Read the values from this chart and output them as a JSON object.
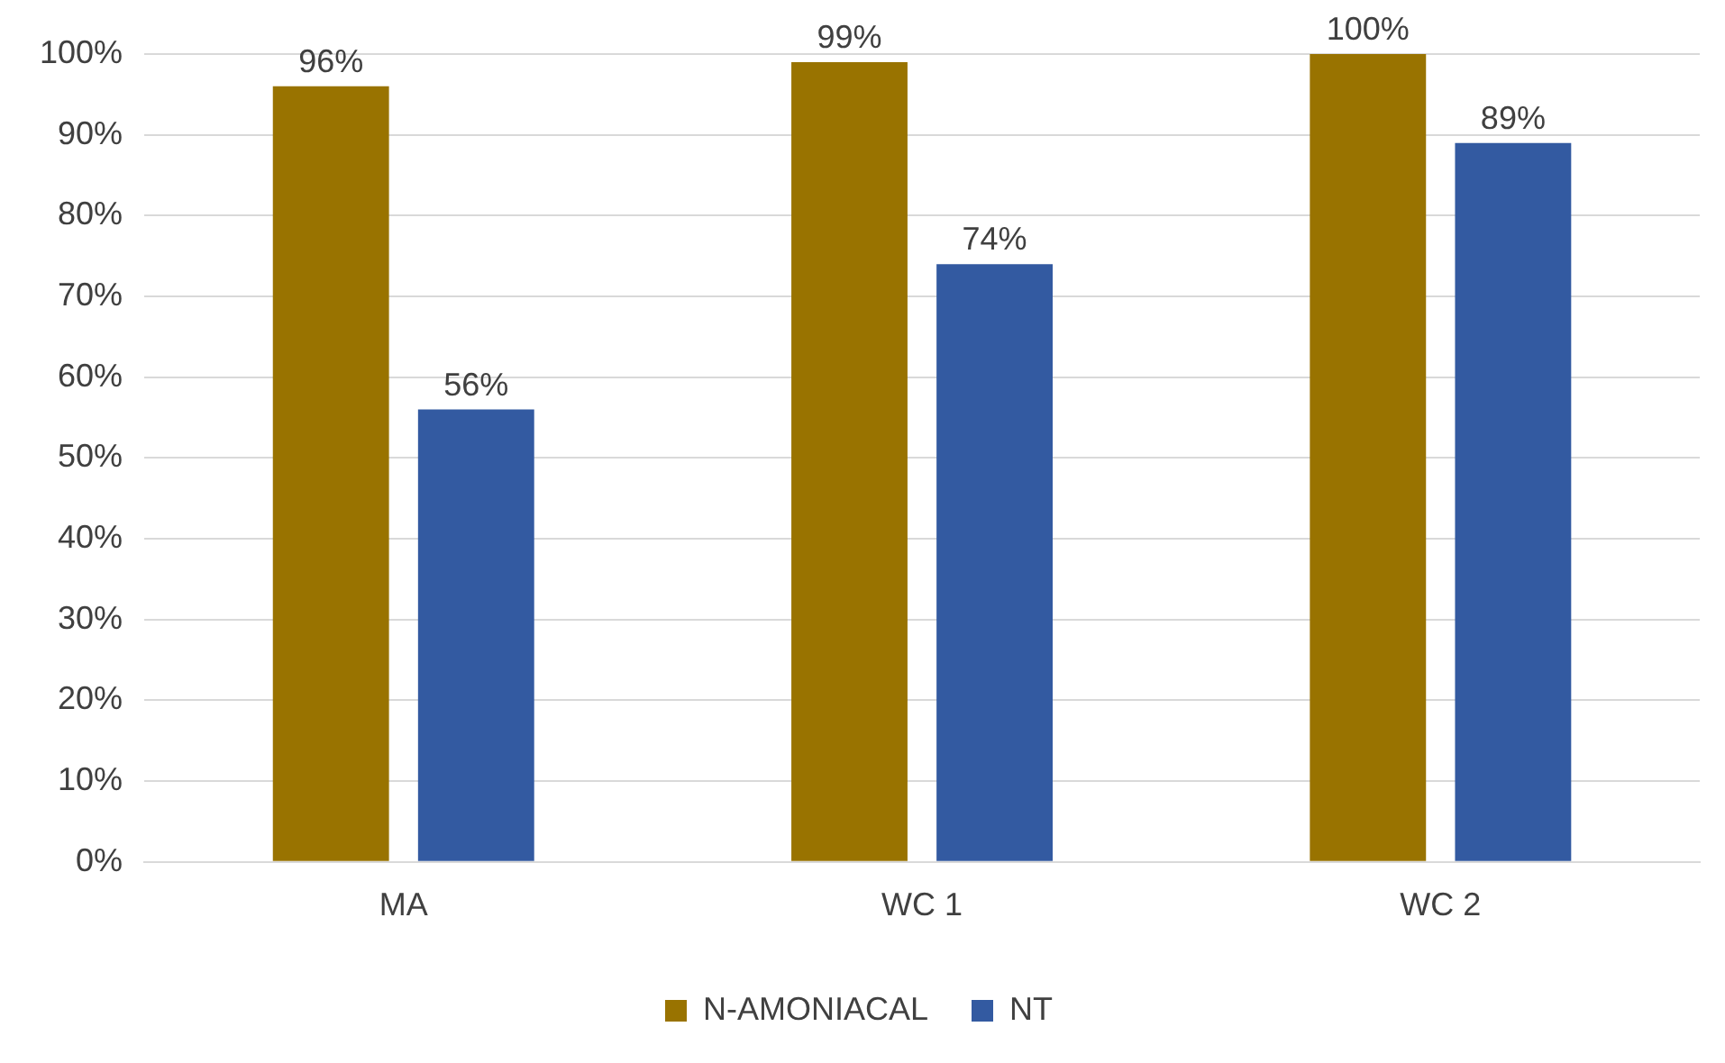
{
  "chart_data": {
    "type": "bar",
    "categories": [
      "MA",
      "WC 1",
      "WC 2"
    ],
    "series": [
      {
        "name": "N-AMONIACAL",
        "color": "#997300",
        "values": [
          96,
          99,
          100
        ],
        "value_labels": [
          "96%",
          "99%",
          "100%"
        ]
      },
      {
        "name": "NT",
        "color": "#335aa1",
        "values": [
          56,
          74,
          89
        ],
        "value_labels": [
          "56%",
          "74%",
          "89%"
        ]
      }
    ],
    "ylim": [
      0,
      100
    ],
    "yticks": [
      {
        "value": 0,
        "label": "0%"
      },
      {
        "value": 10,
        "label": "10%"
      },
      {
        "value": 20,
        "label": "20%"
      },
      {
        "value": 30,
        "label": "30%"
      },
      {
        "value": 40,
        "label": "40%"
      },
      {
        "value": 50,
        "label": "50%"
      },
      {
        "value": 60,
        "label": "60%"
      },
      {
        "value": 70,
        "label": "70%"
      },
      {
        "value": 80,
        "label": "80%"
      },
      {
        "value": 90,
        "label": "90%"
      },
      {
        "value": 100,
        "label": "100%"
      }
    ],
    "grid": "y",
    "legend": "bottom"
  }
}
